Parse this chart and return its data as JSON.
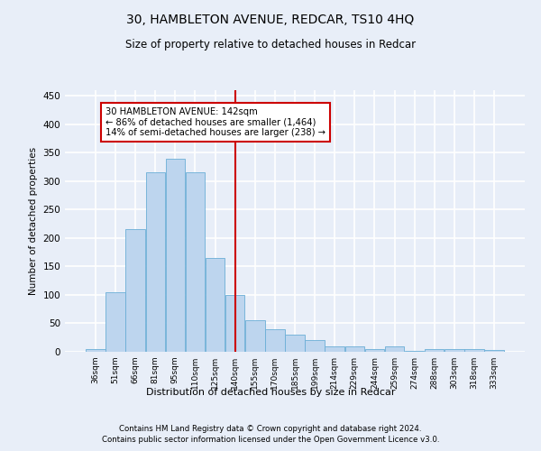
{
  "title": "30, HAMBLETON AVENUE, REDCAR, TS10 4HQ",
  "subtitle": "Size of property relative to detached houses in Redcar",
  "xlabel": "Distribution of detached houses by size in Redcar",
  "ylabel": "Number of detached properties",
  "categories": [
    "36sqm",
    "51sqm",
    "66sqm",
    "81sqm",
    "95sqm",
    "110sqm",
    "125sqm",
    "140sqm",
    "155sqm",
    "170sqm",
    "185sqm",
    "199sqm",
    "214sqm",
    "229sqm",
    "244sqm",
    "259sqm",
    "274sqm",
    "288sqm",
    "303sqm",
    "318sqm",
    "333sqm"
  ],
  "values": [
    5,
    105,
    215,
    315,
    340,
    315,
    165,
    100,
    55,
    40,
    30,
    20,
    10,
    10,
    5,
    10,
    1,
    5,
    5,
    5,
    3
  ],
  "bar_color": "#bdd5ee",
  "bar_edge_color": "#6aaed6",
  "marker_index": 7,
  "marker_color": "#cc0000",
  "annotation_lines": [
    "30 HAMBLETON AVENUE: 142sqm",
    "← 86% of detached houses are smaller (1,464)",
    "14% of semi-detached houses are larger (238) →"
  ],
  "ylim": [
    0,
    460
  ],
  "yticks": [
    0,
    50,
    100,
    150,
    200,
    250,
    300,
    350,
    400,
    450
  ],
  "background_color": "#e8eef8",
  "plot_bg_color": "#e8eef8",
  "grid_color": "#ffffff",
  "footer_lines": [
    "Contains HM Land Registry data © Crown copyright and database right 2024.",
    "Contains public sector information licensed under the Open Government Licence v3.0."
  ]
}
